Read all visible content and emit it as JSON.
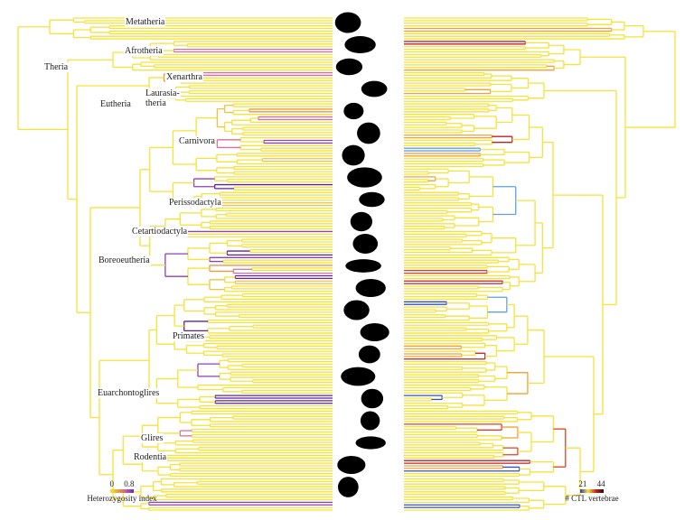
{
  "clades": [
    {
      "label": "Metatheria"
    },
    {
      "label": "Afrotheria"
    },
    {
      "label": "Theria"
    },
    {
      "label": "Xenarthra"
    },
    {
      "label": "Eutheria"
    },
    {
      "label": "Laurasia-"
    },
    {
      "label": "theria"
    },
    {
      "label": "Carnivora"
    },
    {
      "label": "Perissodactyla"
    },
    {
      "label": "Cetartiodactyla"
    },
    {
      "label": "Boreoeutheria"
    },
    {
      "label": "Primates"
    },
    {
      "label": "Euarchontoglires"
    },
    {
      "label": "Glires"
    },
    {
      "label": "Rodentia"
    }
  ],
  "legend_left": {
    "min": "0",
    "max": "0.8",
    "title": "Heterozygosity index",
    "colors": [
      "#f5e636",
      "#e8a040",
      "#c060a0",
      "#6a2aa8"
    ]
  },
  "legend_right": {
    "min": "21",
    "max": "44",
    "title": "# CTL vertebrae",
    "colors": [
      "#2a3aa8",
      "#f5e636",
      "#d02020",
      "#111111"
    ]
  },
  "branch_default_color": "#f5e23a"
}
